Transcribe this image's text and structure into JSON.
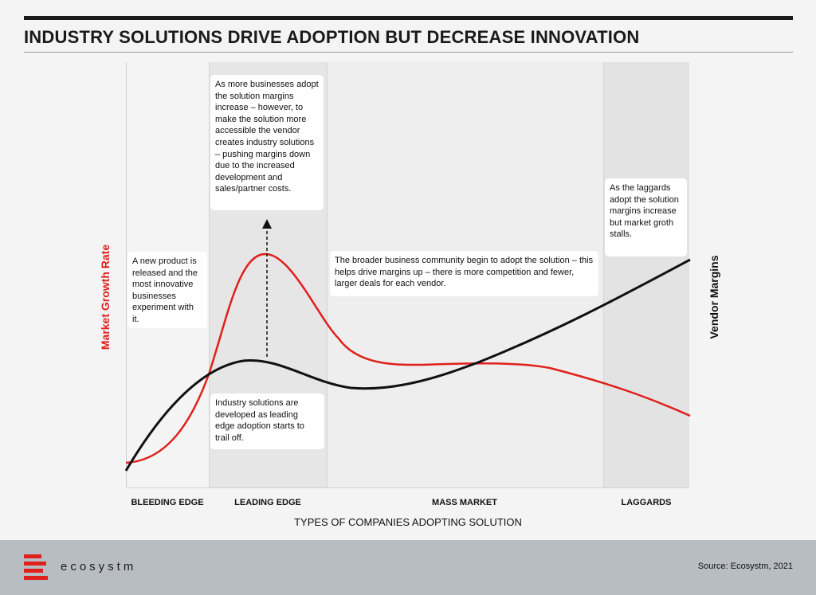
{
  "title": "INDUSTRY SOLUTIONS DRIVE ADOPTION BUT DECREASE INNOVATION",
  "axes": {
    "y_left": "Market Growth Rate",
    "y_right": "Vendor Margins",
    "x": "TYPES OF COMPANIES ADOPTING SOLUTION"
  },
  "bands": [
    "BLEEDING EDGE",
    "LEADING EDGE",
    "MASS MARKET",
    "LAGGARDS"
  ],
  "notes": {
    "bleeding": "A new product is released and the most innovative businesses experiment with it.",
    "leading_top": "As more businesses adopt the solution margins increase – however, to make the solution more accessible the vendor creates industry solutions – pushing margins down due to the increased development and sales/partner costs.",
    "leading_bottom": "Industry solutions are developed as leading edge adoption starts to trail off.",
    "mass": "The broader business community begin to adopt the solution – this helps drive margins up –  there is more competition and fewer, larger deals for each vendor.",
    "laggards": "As the laggards adopt the solution margins increase but market groth stalls."
  },
  "colors": {
    "market_growth": "#e0201b",
    "vendor_margins": "#111111",
    "footer": "#b8bcc3"
  },
  "footer": {
    "brand": "ecosystm",
    "source": "Source: Ecosystm, 2021"
  }
}
